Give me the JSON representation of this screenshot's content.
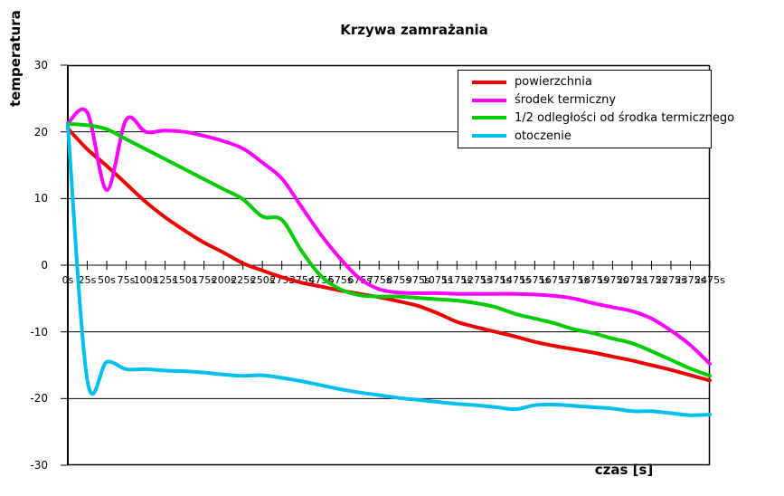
{
  "chart_data": {
    "type": "line",
    "title": "Krzywa zamrażania",
    "xlabel": "czas [s]",
    "ylabel": "temperatura",
    "ylim": [
      -30,
      30
    ],
    "y_ticks": [
      30,
      20,
      10,
      0,
      -10,
      -20,
      -30
    ],
    "grid": "horizontal gridlines every 10 units, category axis drawn at y=0 with tick marks",
    "legend_position": "top-right inside plot, white box with black border",
    "axis_color": "#000000",
    "background_color": "#ffffff",
    "categories": [
      "0s",
      "25s",
      "50s",
      "75s",
      "100s",
      "125s",
      "150s",
      "175s",
      "200s",
      "225s",
      "250s",
      "275s",
      "375s",
      "475s",
      "575s",
      "675s",
      "775s",
      "875s",
      "975s",
      "1075s",
      "1175s",
      "1275s",
      "1375s",
      "1475s",
      "1575s",
      "1675s",
      "1775s",
      "1875s",
      "1975s",
      "2075s",
      "2175s",
      "2275s",
      "2375s",
      "2475s"
    ],
    "series": [
      {
        "name": "powierzchnia",
        "color": "#ee0000",
        "values": [
          20.5,
          17.4,
          14.9,
          12.2,
          9.5,
          7.2,
          5.2,
          3.4,
          1.9,
          0.3,
          -0.8,
          -1.8,
          -2.6,
          -3.2,
          -3.8,
          -4.3,
          -4.8,
          -5.4,
          -6.1,
          -7.2,
          -8.5,
          -9.3,
          -10.0,
          -10.7,
          -11.5,
          -12.1,
          -12.6,
          -13.1,
          -13.7,
          -14.3,
          -15.0,
          -15.7,
          -16.5,
          -17.3
        ]
      },
      {
        "name": "środek termiczny",
        "color": "#ff00ff",
        "values": [
          21.3,
          22.9,
          11.3,
          21.8,
          20.0,
          20.2,
          20.0,
          19.4,
          18.6,
          17.5,
          15.4,
          13.0,
          8.8,
          4.6,
          1.0,
          -2.0,
          -3.6,
          -4.1,
          -4.2,
          -4.2,
          -4.3,
          -4.3,
          -4.3,
          -4.3,
          -4.4,
          -4.6,
          -5.0,
          -5.7,
          -6.3,
          -6.9,
          -8.0,
          -9.8,
          -12.0,
          -14.8
        ]
      },
      {
        "name": "1/2 odległości od środka termicznego",
        "color": "#00cc00",
        "values": [
          21.2,
          21.0,
          20.4,
          18.9,
          17.4,
          15.9,
          14.4,
          12.9,
          11.4,
          9.9,
          7.3,
          6.8,
          2.2,
          -1.6,
          -3.6,
          -4.5,
          -4.7,
          -4.7,
          -4.9,
          -5.1,
          -5.3,
          -5.7,
          -6.3,
          -7.3,
          -8.0,
          -8.7,
          -9.6,
          -10.2,
          -11.0,
          -11.7,
          -12.9,
          -14.2,
          -15.5,
          -16.6
        ]
      },
      {
        "name": "otoczenie",
        "color": "#00bfef",
        "values": [
          21.0,
          -17.2,
          -14.5,
          -15.6,
          -15.6,
          -15.8,
          -15.9,
          -16.1,
          -16.4,
          -16.6,
          -16.5,
          -16.9,
          -17.4,
          -18.0,
          -18.6,
          -19.1,
          -19.5,
          -19.9,
          -20.2,
          -20.5,
          -20.8,
          -21.0,
          -21.3,
          -21.6,
          -21.0,
          -20.9,
          -21.1,
          -21.3,
          -21.5,
          -21.9,
          -21.9,
          -22.2,
          -22.5,
          -22.4
        ]
      }
    ]
  }
}
